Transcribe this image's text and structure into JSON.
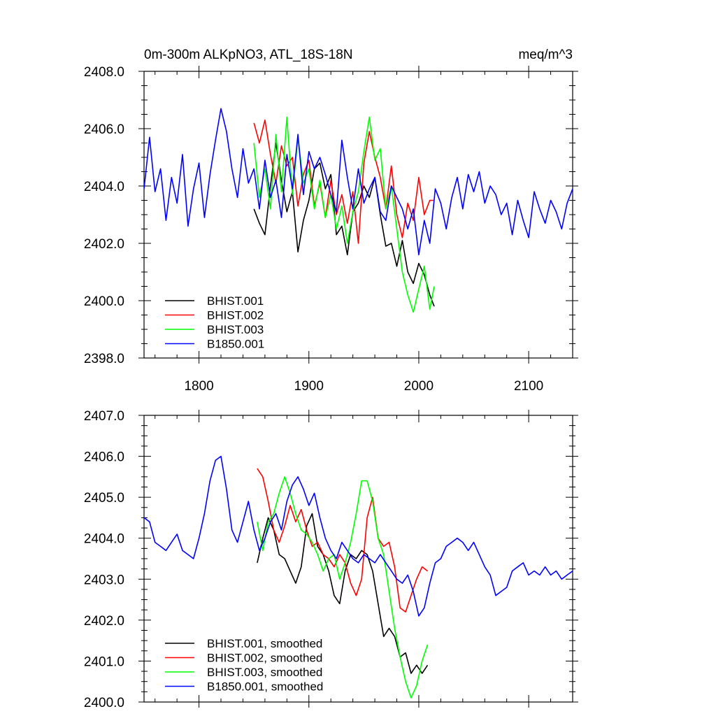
{
  "chart_data": [
    {
      "type": "line",
      "title": "0m-300m ALKpNO3, ATL_18S-18N",
      "units": "meq/m^3",
      "xlabel": "",
      "ylabel": "",
      "xlim": [
        1750,
        2140
      ],
      "ylim": [
        2398,
        2408
      ],
      "xticks": [
        1800,
        1900,
        2000,
        2100
      ],
      "xtick_labels": [
        "1800",
        "1900",
        "2000",
        "2100"
      ],
      "yticks": [
        2398,
        2400,
        2402,
        2404,
        2406,
        2408
      ],
      "ytick_labels": [
        "2398.0",
        "2400.0",
        "2402.0",
        "2404.0",
        "2406.0",
        "2408.0"
      ],
      "legend_position": "bottom-left",
      "series": [
        {
          "name": "BHIST.001",
          "color": "#000000",
          "x": [
            1850,
            1855,
            1860,
            1865,
            1870,
            1875,
            1880,
            1885,
            1890,
            1895,
            1900,
            1905,
            1910,
            1915,
            1920,
            1925,
            1930,
            1935,
            1940,
            1945,
            1950,
            1955,
            1960,
            1965,
            1970,
            1975,
            1980,
            1985,
            1990,
            1995,
            2000,
            2005,
            2010,
            2014
          ],
          "values": [
            2403.2,
            2402.7,
            2402.3,
            2404.0,
            2405.5,
            2404.2,
            2403.1,
            2403.8,
            2401.7,
            2402.8,
            2403.5,
            2404.6,
            2404.8,
            2403.9,
            2404.4,
            2402.3,
            2402.6,
            2401.6,
            2403.1,
            2403.4,
            2404.0,
            2403.6,
            2404.3,
            2403.0,
            2401.9,
            2402.0,
            2401.2,
            2402.1,
            2401.0,
            2400.6,
            2401.3,
            2400.9,
            2400.2,
            2399.8
          ]
        },
        {
          "name": "BHIST.002",
          "color": "#ff0000",
          "x": [
            1850,
            1855,
            1860,
            1865,
            1870,
            1875,
            1880,
            1885,
            1890,
            1895,
            1900,
            1905,
            1910,
            1915,
            1920,
            1925,
            1930,
            1935,
            1940,
            1945,
            1950,
            1955,
            1960,
            1965,
            1970,
            1975,
            1980,
            1985,
            1990,
            1995,
            2000,
            2005,
            2010,
            2014
          ],
          "values": [
            2406.2,
            2405.5,
            2406.3,
            2405.1,
            2404.1,
            2405.4,
            2404.7,
            2405.0,
            2403.3,
            2404.4,
            2404.9,
            2403.3,
            2404.1,
            2402.9,
            2404.2,
            2403.0,
            2403.7,
            2402.7,
            2403.8,
            2402.0,
            2404.8,
            2405.9,
            2405.0,
            2404.3,
            2403.2,
            2404.7,
            2403.0,
            2402.2,
            2403.4,
            2402.8,
            2404.3,
            2403.0,
            2403.5,
            2403.5
          ]
        },
        {
          "name": "BHIST.003",
          "color": "#00ff00",
          "x": [
            1850,
            1855,
            1860,
            1865,
            1870,
            1875,
            1880,
            1885,
            1890,
            1895,
            1900,
            1905,
            1910,
            1915,
            1920,
            1925,
            1930,
            1935,
            1940,
            1945,
            1950,
            1955,
            1960,
            1965,
            1970,
            1975,
            1980,
            1985,
            1990,
            1995,
            2000,
            2005,
            2010,
            2014
          ],
          "values": [
            2405.5,
            2403.6,
            2404.6,
            2403.2,
            2405.8,
            2403.8,
            2406.4,
            2403.7,
            2405.7,
            2404.1,
            2404.6,
            2403.2,
            2404.2,
            2402.9,
            2403.7,
            2402.5,
            2403.3,
            2402.0,
            2403.1,
            2403.8,
            2405.2,
            2406.4,
            2404.9,
            2405.3,
            2403.2,
            2404.0,
            2402.5,
            2401.0,
            2400.2,
            2399.6,
            2400.4,
            2401.2,
            2399.7,
            2400.5
          ]
        },
        {
          "name": "B1850.001",
          "color": "#0000ff",
          "x": [
            1750,
            1755,
            1760,
            1765,
            1770,
            1775,
            1780,
            1785,
            1790,
            1795,
            1800,
            1805,
            1810,
            1815,
            1820,
            1825,
            1830,
            1835,
            1840,
            1845,
            1850,
            1855,
            1860,
            1865,
            1870,
            1875,
            1880,
            1885,
            1890,
            1895,
            1900,
            1905,
            1910,
            1915,
            1920,
            1925,
            1930,
            1935,
            1940,
            1945,
            1950,
            1955,
            1960,
            1965,
            1970,
            1975,
            1980,
            1985,
            1990,
            1995,
            2000,
            2005,
            2010,
            2015,
            2020,
            2025,
            2030,
            2035,
            2040,
            2045,
            2050,
            2055,
            2060,
            2065,
            2070,
            2075,
            2080,
            2085,
            2090,
            2095,
            2100,
            2105,
            2110,
            2115,
            2120,
            2125,
            2130,
            2135,
            2140
          ],
          "values": [
            2403.9,
            2405.7,
            2403.8,
            2404.6,
            2402.8,
            2404.3,
            2403.4,
            2405.1,
            2402.6,
            2403.9,
            2404.8,
            2402.9,
            2404.4,
            2405.6,
            2406.7,
            2405.9,
            2404.6,
            2403.6,
            2405.3,
            2404.1,
            2404.6,
            2403.2,
            2404.9,
            2403.6,
            2404.2,
            2402.9,
            2405.1,
            2403.9,
            2405.8,
            2403.7,
            2405.2,
            2404.6,
            2405.0,
            2404.4,
            2403.7,
            2403.1,
            2405.6,
            2404.3,
            2403.2,
            2404.6,
            2403.4,
            2403.9,
            2404.3,
            2403.1,
            2402.8,
            2404.0,
            2403.6,
            2403.2,
            2402.5,
            2403.2,
            2401.6,
            2402.8,
            2402.0,
            2403.9,
            2403.4,
            2402.5,
            2403.6,
            2404.3,
            2403.2,
            2404.4,
            2403.8,
            2404.5,
            2403.4,
            2404.0,
            2403.7,
            2403.0,
            2403.4,
            2402.3,
            2403.5,
            2402.8,
            2402.2,
            2403.8,
            2403.2,
            2402.7,
            2403.5,
            2403.1,
            2402.5,
            2403.4,
            2403.9
          ]
        }
      ]
    },
    {
      "type": "line",
      "title": "",
      "xlabel": "",
      "ylabel": "",
      "xlim": [
        1750,
        2140
      ],
      "ylim": [
        2400,
        2407
      ],
      "xticks": [
        1800,
        1900,
        2000,
        2100
      ],
      "yticks": [
        2400,
        2401,
        2402,
        2403,
        2404,
        2405,
        2406,
        2407
      ],
      "ytick_labels": [
        "2400.0",
        "2401.0",
        "2402.0",
        "2403.0",
        "2404.0",
        "2405.0",
        "2406.0",
        "2407.0"
      ],
      "legend_position": "bottom-left",
      "series": [
        {
          "name": "BHIST.001, smoothed",
          "color": "#000000",
          "x": [
            1853,
            1858,
            1863,
            1868,
            1873,
            1878,
            1883,
            1888,
            1893,
            1898,
            1903,
            1908,
            1913,
            1918,
            1923,
            1928,
            1933,
            1938,
            1943,
            1948,
            1953,
            1958,
            1963,
            1968,
            1973,
            1978,
            1983,
            1988,
            1993,
            1998,
            2003,
            2008
          ],
          "values": [
            2403.4,
            2404.0,
            2404.5,
            2404.2,
            2403.6,
            2403.5,
            2403.2,
            2402.9,
            2403.3,
            2404.3,
            2404.6,
            2403.8,
            2403.6,
            2403.2,
            2402.6,
            2402.4,
            2403.2,
            2403.6,
            2403.5,
            2403.7,
            2403.6,
            2403.2,
            2402.4,
            2401.6,
            2401.8,
            2401.6,
            2401.1,
            2401.2,
            2400.7,
            2400.9,
            2400.7,
            2400.9
          ]
        },
        {
          "name": "BHIST.002, smoothed",
          "color": "#ff0000",
          "x": [
            1853,
            1858,
            1863,
            1868,
            1873,
            1878,
            1883,
            1888,
            1893,
            1898,
            1903,
            1908,
            1913,
            1918,
            1923,
            1928,
            1933,
            1938,
            1943,
            1948,
            1953,
            1958,
            1963,
            1968,
            1973,
            1978,
            1983,
            1988,
            1993,
            1998,
            2003,
            2008
          ],
          "values": [
            2405.7,
            2405.5,
            2404.9,
            2404.2,
            2403.9,
            2404.3,
            2404.8,
            2404.4,
            2404.7,
            2404.2,
            2403.8,
            2403.9,
            2403.6,
            2403.5,
            2403.3,
            2403.6,
            2403.4,
            2402.9,
            2402.6,
            2403.0,
            2404.5,
            2405.0,
            2404.0,
            2403.8,
            2403.9,
            2403.3,
            2402.3,
            2402.2,
            2402.6,
            2403.0,
            2403.3,
            2403.2
          ]
        },
        {
          "name": "BHIST.003, smoothed",
          "color": "#00ff00",
          "x": [
            1853,
            1858,
            1863,
            1868,
            1873,
            1878,
            1883,
            1888,
            1893,
            1898,
            1903,
            1908,
            1913,
            1918,
            1923,
            1928,
            1933,
            1938,
            1943,
            1948,
            1953,
            1958,
            1963,
            1968,
            1973,
            1978,
            1983,
            1988,
            1993,
            1998,
            2003,
            2008
          ],
          "values": [
            2404.4,
            2403.7,
            2404.4,
            2404.6,
            2405.1,
            2405.5,
            2405.1,
            2404.6,
            2404.2,
            2404.1,
            2403.9,
            2403.6,
            2403.2,
            2403.5,
            2403.6,
            2403.0,
            2403.4,
            2403.9,
            2404.6,
            2405.4,
            2405.4,
            2404.9,
            2404.0,
            2403.6,
            2402.7,
            2401.8,
            2401.1,
            2400.5,
            2400.1,
            2400.4,
            2401.0,
            2401.4
          ]
        },
        {
          "name": "B1850.001, smoothed",
          "color": "#0000ff",
          "x": [
            1750,
            1755,
            1760,
            1765,
            1770,
            1775,
            1780,
            1785,
            1790,
            1795,
            1800,
            1805,
            1810,
            1815,
            1820,
            1825,
            1830,
            1835,
            1840,
            1845,
            1850,
            1855,
            1860,
            1865,
            1870,
            1875,
            1880,
            1885,
            1890,
            1895,
            1900,
            1905,
            1910,
            1915,
            1920,
            1925,
            1930,
            1935,
            1940,
            1945,
            1950,
            1955,
            1960,
            1965,
            1970,
            1975,
            1980,
            1985,
            1990,
            1995,
            2000,
            2005,
            2010,
            2015,
            2020,
            2025,
            2030,
            2035,
            2040,
            2045,
            2050,
            2055,
            2060,
            2065,
            2070,
            2075,
            2080,
            2085,
            2090,
            2095,
            2100,
            2105,
            2110,
            2115,
            2120,
            2125,
            2130,
            2135,
            2140
          ],
          "values": [
            2404.5,
            2404.4,
            2403.9,
            2403.8,
            2403.7,
            2403.9,
            2404.1,
            2403.7,
            2403.6,
            2403.5,
            2404.0,
            2404.6,
            2405.4,
            2405.9,
            2406.0,
            2405.2,
            2404.2,
            2403.9,
            2404.4,
            2404.9,
            2404.2,
            2403.7,
            2404.0,
            2404.4,
            2404.6,
            2404.2,
            2404.9,
            2405.3,
            2405.5,
            2405.2,
            2404.8,
            2405.1,
            2404.5,
            2404.0,
            2403.7,
            2403.5,
            2403.9,
            2403.7,
            2403.5,
            2403.4,
            2403.6,
            2403.5,
            2403.4,
            2403.6,
            2403.4,
            2403.2,
            2403.0,
            2402.9,
            2403.1,
            2402.7,
            2402.1,
            2402.3,
            2402.9,
            2403.4,
            2403.5,
            2403.8,
            2403.9,
            2404.0,
            2403.9,
            2403.7,
            2403.9,
            2403.6,
            2403.3,
            2403.1,
            2402.6,
            2402.7,
            2402.8,
            2403.2,
            2403.3,
            2403.4,
            2403.1,
            2403.2,
            2403.1,
            2403.3,
            2403.1,
            2403.2,
            2403.0,
            2403.1,
            2403.2
          ]
        }
      ]
    }
  ]
}
